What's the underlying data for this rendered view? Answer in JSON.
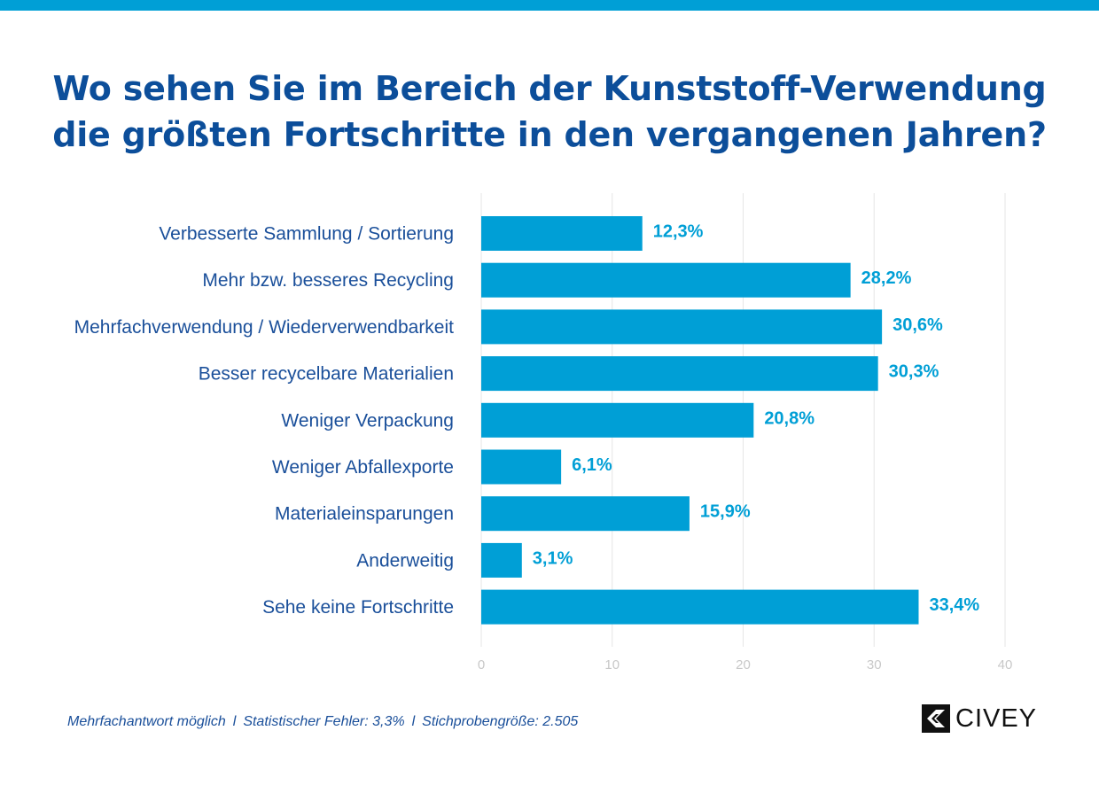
{
  "colors": {
    "accent": "#009fd6",
    "title": "#0c4e9a",
    "label": "#1a4f9a",
    "grid": "#e6e6e6",
    "tick": "#c8c8c8",
    "logo": "#111111"
  },
  "title_lines": [
    "Wo sehen Sie im Bereich der Kunststoff-Verwendung",
    "die größten Fortschritte in den vergangenen Jahren?"
  ],
  "chart_data": {
    "type": "bar",
    "orientation": "horizontal",
    "title": "Wo sehen Sie im Bereich der Kunststoff-Verwendung die größten Fortschritte in den vergangenen Jahren?",
    "categories": [
      "Verbesserte Sammlung / Sortierung",
      "Mehr bzw. besseres Recycling",
      "Mehrfachverwendung / Wiederverwendbarkeit",
      "Besser recycelbare Materialien",
      "Weniger Verpackung",
      "Weniger Abfallexporte",
      "Materialeinsparungen",
      "Anderweitig",
      "Sehe keine Fortschritte"
    ],
    "values": [
      12.3,
      28.2,
      30.6,
      30.3,
      20.8,
      6.1,
      15.9,
      3.1,
      33.4
    ],
    "value_labels": [
      "12,3%",
      "28,2%",
      "30,6%",
      "30,3%",
      "20,8%",
      "6,1%",
      "15,9%",
      "3,1%",
      "33,4%"
    ],
    "xlim": [
      0,
      40
    ],
    "xticks": [
      0,
      10,
      20,
      30,
      40
    ],
    "xlabel": "",
    "ylabel": "",
    "grid": true,
    "legend": "none"
  },
  "footnote": {
    "parts": [
      "Mehrfachantwort möglich",
      "Statistischer Fehler: 3,3%",
      "Stichprobengröße: 2.505"
    ],
    "separator": "l"
  },
  "logo": {
    "text": "CIVEY",
    "icon": "civey-logo-icon"
  }
}
